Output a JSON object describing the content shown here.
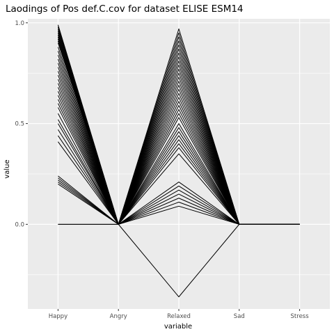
{
  "chart_data": {
    "type": "line",
    "title": "Laodings of Pos def.C.cov for dataset ELISE ESM14",
    "xlabel": "variable",
    "ylabel": "value",
    "categories": [
      "Happy",
      "Angry",
      "Relaxed",
      "Sad",
      "Stress"
    ],
    "ylim": [
      -0.42,
      1.02
    ],
    "y_ticks": [
      0.0,
      0.5,
      1.0
    ],
    "y_tick_labels": [
      "0.0",
      "0.5",
      "1.0"
    ],
    "y_minor_ticks": [
      -0.25,
      0.25,
      0.75
    ],
    "grid": true,
    "line_color": "#000000",
    "panel_background": "#ebebeb",
    "grid_color": "#ffffff",
    "series": [
      {
        "values": [
          0.99,
          0.0,
          0.97,
          0.0,
          0.0
        ]
      },
      {
        "values": [
          0.98,
          0.0,
          0.95,
          0.0,
          0.0
        ]
      },
      {
        "values": [
          0.97,
          0.0,
          0.93,
          0.0,
          0.0
        ]
      },
      {
        "values": [
          0.96,
          0.0,
          0.91,
          0.0,
          0.0
        ]
      },
      {
        "values": [
          0.95,
          0.0,
          0.89,
          0.0,
          0.0
        ]
      },
      {
        "values": [
          0.94,
          0.0,
          0.87,
          0.0,
          0.0
        ]
      },
      {
        "values": [
          0.93,
          0.0,
          0.85,
          0.0,
          0.0
        ]
      },
      {
        "values": [
          0.92,
          0.0,
          0.83,
          0.0,
          0.0
        ]
      },
      {
        "values": [
          0.91,
          0.0,
          0.81,
          0.0,
          0.0
        ]
      },
      {
        "values": [
          0.9,
          0.0,
          0.79,
          0.0,
          0.0
        ]
      },
      {
        "values": [
          0.88,
          0.0,
          0.77,
          0.0,
          0.0
        ]
      },
      {
        "values": [
          0.86,
          0.0,
          0.75,
          0.0,
          0.0
        ]
      },
      {
        "values": [
          0.84,
          0.0,
          0.73,
          0.0,
          0.0
        ]
      },
      {
        "values": [
          0.82,
          0.0,
          0.71,
          0.0,
          0.0
        ]
      },
      {
        "values": [
          0.8,
          0.0,
          0.69,
          0.0,
          0.0
        ]
      },
      {
        "values": [
          0.78,
          0.0,
          0.67,
          0.0,
          0.0
        ]
      },
      {
        "values": [
          0.76,
          0.0,
          0.65,
          0.0,
          0.0
        ]
      },
      {
        "values": [
          0.74,
          0.0,
          0.63,
          0.0,
          0.0
        ]
      },
      {
        "values": [
          0.72,
          0.0,
          0.61,
          0.0,
          0.0
        ]
      },
      {
        "values": [
          0.7,
          0.0,
          0.59,
          0.0,
          0.0
        ]
      },
      {
        "values": [
          0.68,
          0.0,
          0.57,
          0.0,
          0.0
        ]
      },
      {
        "values": [
          0.66,
          0.0,
          0.55,
          0.0,
          0.0
        ]
      },
      {
        "values": [
          0.64,
          0.0,
          0.53,
          0.0,
          0.0
        ]
      },
      {
        "values": [
          0.62,
          0.0,
          0.5,
          0.0,
          0.0
        ]
      },
      {
        "values": [
          0.6,
          0.0,
          0.48,
          0.0,
          0.0
        ]
      },
      {
        "values": [
          0.58,
          0.0,
          0.46,
          0.0,
          0.0
        ]
      },
      {
        "values": [
          0.55,
          0.0,
          0.44,
          0.0,
          0.0
        ]
      },
      {
        "values": [
          0.52,
          0.0,
          0.42,
          0.0,
          0.0
        ]
      },
      {
        "values": [
          0.5,
          0.0,
          0.4,
          0.0,
          0.0
        ]
      },
      {
        "values": [
          0.47,
          0.0,
          0.38,
          0.0,
          0.0
        ]
      },
      {
        "values": [
          0.44,
          0.0,
          0.35,
          0.0,
          0.0
        ]
      },
      {
        "values": [
          0.41,
          0.0,
          0.21,
          0.0,
          0.0
        ]
      },
      {
        "values": [
          0.24,
          0.0,
          0.19,
          0.0,
          0.0
        ]
      },
      {
        "values": [
          0.23,
          0.0,
          0.17,
          0.0,
          0.0
        ]
      },
      {
        "values": [
          0.22,
          0.0,
          0.15,
          0.0,
          0.0
        ]
      },
      {
        "values": [
          0.21,
          0.0,
          0.13,
          0.0,
          0.0
        ]
      },
      {
        "values": [
          0.2,
          0.0,
          0.11,
          0.0,
          0.0
        ]
      },
      {
        "values": [
          0.0,
          0.0,
          0.09,
          0.0,
          0.0
        ]
      },
      {
        "values": [
          0.0,
          0.0,
          -0.36,
          0.0,
          0.0
        ]
      }
    ]
  }
}
